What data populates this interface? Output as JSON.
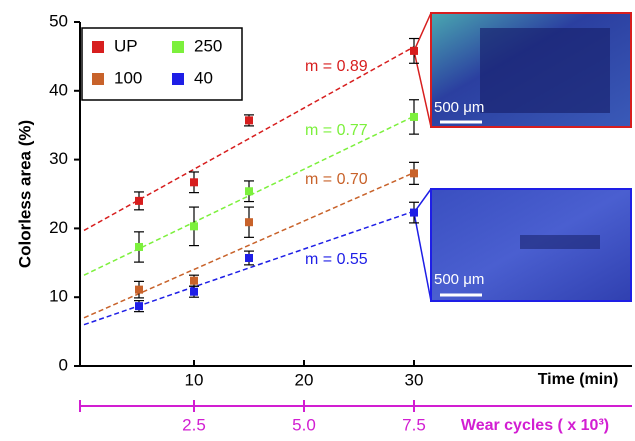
{
  "chart_data": {
    "type": "scatter",
    "x_label": "Time (min)",
    "y_label": "Colorless area (%)",
    "x2_label": "Wear cycles ( x 10³)",
    "x": [
      5,
      10,
      15,
      30
    ],
    "xlim": [
      0,
      50
    ],
    "xticks": [
      10,
      20,
      30
    ],
    "x2lim": [
      0,
      12.5
    ],
    "x2ticks": [
      2.5,
      {
        "value": 5,
        "label": "5.0"
      },
      7.5
    ],
    "ylim": [
      0,
      50
    ],
    "yticks": [
      0,
      10,
      20,
      30,
      40,
      50
    ],
    "trend_x": [
      0,
      30
    ],
    "series": [
      {
        "name": "UP",
        "color": "#d71e1e",
        "values": [
          24,
          26.7,
          35.7,
          45.8
        ],
        "errors": [
          1.3,
          1.5,
          0.8,
          1.8
        ],
        "trend": [
          19.7,
          46.4
        ],
        "slope_label": "m = 0.89"
      },
      {
        "name": "100",
        "color": "#c8622a",
        "values": [
          11.1,
          12.4,
          20.9,
          28
        ],
        "errors": [
          1.2,
          0.8,
          2.2,
          1.6
        ],
        "trend": [
          7.0,
          28.1
        ],
        "slope_label": "m = 0.70"
      },
      {
        "name": "250",
        "color": "#7cf03c",
        "values": [
          17.3,
          20.3,
          25.4,
          36.2
        ],
        "errors": [
          2.2,
          2.8,
          1.5,
          2.5
        ],
        "trend": [
          13.2,
          36.3
        ],
        "slope_label": "m = 0.77"
      },
      {
        "name": "40",
        "color": "#1e1ee6",
        "values": [
          8.7,
          10.8,
          15.7,
          22.3
        ],
        "errors": [
          0.8,
          0.8,
          1.0,
          1.5
        ],
        "trend": [
          6.0,
          22.5
        ],
        "slope_label": "m = 0.55"
      }
    ],
    "inset_labels": [
      "500 μm",
      "500 μm"
    ]
  }
}
